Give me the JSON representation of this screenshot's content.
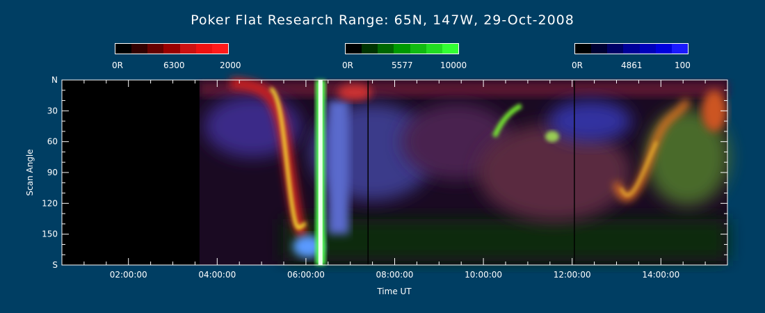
{
  "chart_data": {
    "type": "heatmap",
    "title": "Poker Flat Research Range: 65N, 147W, 29-Oct-2008",
    "xlabel": "Time UT",
    "ylabel": "Scan Angle",
    "x_ticks": [
      "02:00:00",
      "04:00:00",
      "06:00:00",
      "08:00:00",
      "10:00:00",
      "12:00:00",
      "14:00:00"
    ],
    "x_tick_hours": [
      2,
      4,
      6,
      8,
      10,
      12,
      14
    ],
    "xlim_hours": [
      0.5,
      15.5
    ],
    "data_start_hour": 3.6,
    "y_ticks": [
      "N",
      "30",
      "60",
      "90",
      "120",
      "150",
      "S"
    ],
    "y_tick_values": [
      0,
      30,
      60,
      90,
      120,
      150,
      180
    ],
    "ylim": [
      0,
      180
    ],
    "colorbars": [
      {
        "name": "6300",
        "min_label": "0R",
        "max_label": "2000",
        "colors": [
          "#000000",
          "#330000",
          "#660000",
          "#990000",
          "#cc1111",
          "#ee1111",
          "#ff1a1a"
        ]
      },
      {
        "name": "5577",
        "min_label": "0R",
        "max_label": "10000",
        "colors": [
          "#000000",
          "#003300",
          "#006600",
          "#009900",
          "#11bb11",
          "#22dd22",
          "#33ff33"
        ]
      },
      {
        "name": "4861",
        "min_label": "0R",
        "max_label": "100",
        "colors": [
          "#000000",
          "#000033",
          "#000066",
          "#000099",
          "#0000bb",
          "#0000dd",
          "#1a1aff"
        ]
      }
    ],
    "features": [
      {
        "label": "red/yellow auroral arc descending equatorward",
        "hour_range": [
          5.3,
          6.2
        ],
        "angle_range": [
          10,
          160
        ],
        "color": "#ffdd22"
      },
      {
        "label": "bright green vertical band",
        "hour_range": [
          6.2,
          6.45
        ],
        "angle_range": [
          0,
          180
        ],
        "color": "#55ff55"
      },
      {
        "label": "blue emission near southern horizon",
        "hour_range": [
          5.8,
          6.3
        ],
        "angle_range": [
          150,
          175
        ],
        "color": "#4a8cff"
      },
      {
        "label": "green patch",
        "hour_range": [
          10.3,
          10.9
        ],
        "angle_range": [
          25,
          60
        ],
        "color": "#66dd33"
      },
      {
        "label": "orange/yellow arc",
        "hour_range": [
          13.1,
          14.5
        ],
        "angle_range": [
          30,
          140
        ],
        "color": "#ee9922"
      }
    ]
  }
}
